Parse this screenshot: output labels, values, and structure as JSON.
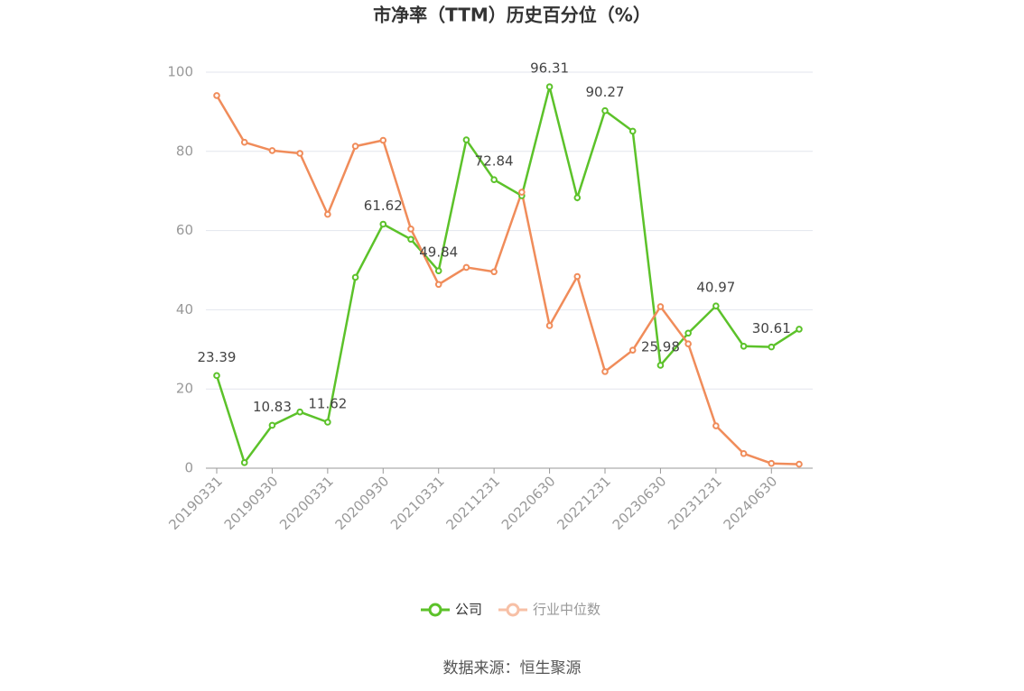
{
  "chart_data": {
    "type": "line",
    "title": "市净率（TTM）历史百分位（%）",
    "source": "数据来源：恒生聚源",
    "categories": [
      "20190331",
      null,
      "20190930",
      null,
      "20200331",
      null,
      "20200930",
      null,
      "20210331",
      null,
      "20211231",
      null,
      "20220630",
      null,
      "20221231",
      null,
      "20230630",
      null,
      "20231231",
      null,
      "20240630",
      null
    ],
    "series": [
      {
        "name": "公司",
        "color": "#5cc22a",
        "values": [
          23.39,
          1.4,
          10.83,
          14.2,
          11.62,
          48.2,
          61.62,
          57.8,
          49.84,
          82.9,
          72.84,
          68.8,
          96.31,
          68.3,
          90.27,
          85.1,
          25.98,
          34.1,
          40.97,
          30.8,
          30.61,
          35.1
        ],
        "value_labels": [
          "23.39",
          null,
          "10.83",
          null,
          "11.62",
          null,
          "61.62",
          null,
          "49.84",
          null,
          "72.84",
          null,
          "96.31",
          null,
          "90.27",
          null,
          "25.98",
          null,
          "40.97",
          null,
          "30.61",
          null
        ]
      },
      {
        "name": "行业中位数",
        "color": "#f08c5a",
        "legend_color": "#f7c0a6",
        "values": [
          94.1,
          82.3,
          80.2,
          79.5,
          64.1,
          81.3,
          82.8,
          60.4,
          46.4,
          50.7,
          49.6,
          69.7,
          36.0,
          48.4,
          24.4,
          29.8,
          40.8,
          31.4,
          10.7,
          3.7,
          1.2,
          1.0
        ]
      }
    ],
    "ylim": [
      0,
      100
    ],
    "yticks": [
      0,
      20,
      40,
      60,
      80,
      100
    ],
    "grid": true
  }
}
